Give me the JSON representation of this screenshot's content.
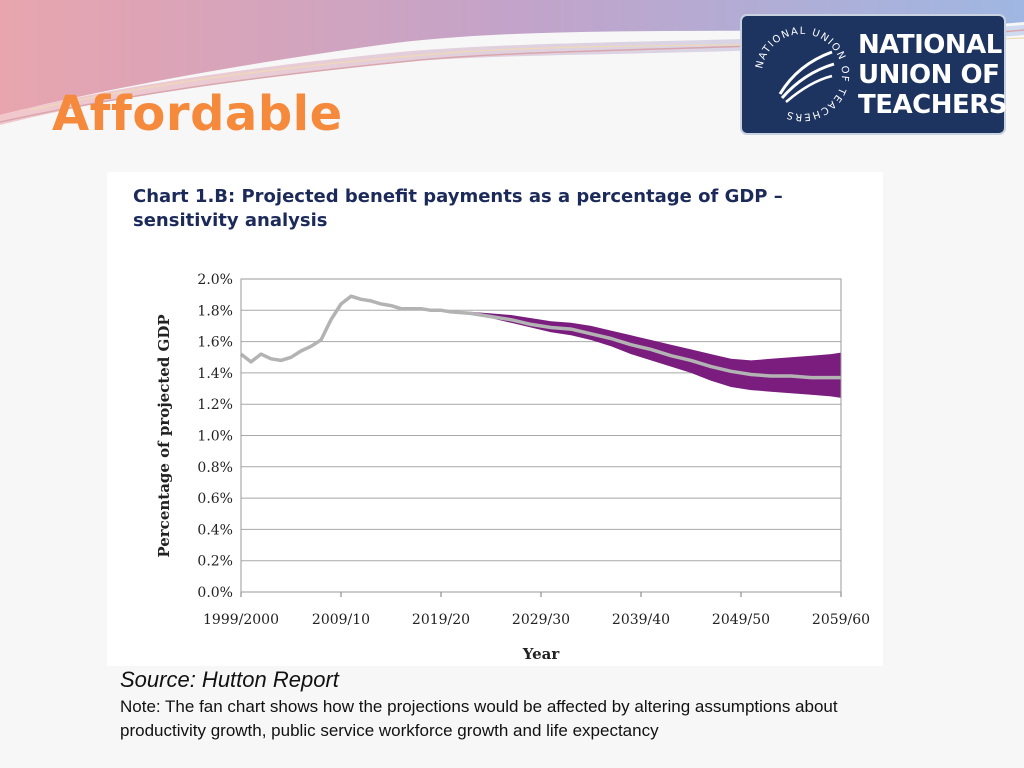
{
  "slide": {
    "title": "Affordable",
    "source": "Source: Hutton Report",
    "note": "Note: The fan chart shows how the projections would be affected by altering assumptions about productivity growth, public service workforce growth and life expectancy"
  },
  "logo": {
    "lines": [
      "NATIONAL",
      "UNION OF",
      "TEACHERS"
    ],
    "ring_text": "NATIONAL UNION OF TEACHERS",
    "icon": "quill-feathers-icon",
    "background": "#1d3461"
  },
  "colors": {
    "title": "#f58a3c",
    "central_line": "#b3b3b3",
    "fan_band": "#7a1d7e",
    "chart_title": "#1c2a5a"
  },
  "chart_data": {
    "type": "line",
    "title": "Chart 1.B: Projected benefit payments as a percentage of GDP – sensitivity analysis",
    "xlabel": "Year",
    "ylabel": "Percentage of projected GDP",
    "x_ticks": [
      "1999/2000",
      "2009/10",
      "2019/20",
      "2029/30",
      "2039/40",
      "2049/50",
      "2059/60"
    ],
    "y_ticks": [
      "0.0%",
      "0.2%",
      "0.4%",
      "0.6%",
      "0.8%",
      "1.0%",
      "1.2%",
      "1.4%",
      "1.6%",
      "1.8%",
      "2.0%"
    ],
    "ylim": [
      0,
      2.0
    ],
    "grid": true,
    "legend": "none",
    "series": [
      {
        "role": "central",
        "x": [
          1999,
          2000,
          2001,
          2002,
          2003,
          2004,
          2005,
          2006,
          2007,
          2008,
          2009,
          2010,
          2011,
          2012,
          2013,
          2014,
          2015,
          2016,
          2017,
          2018,
          2019,
          2020,
          2022,
          2024,
          2026,
          2028,
          2030,
          2032,
          2034,
          2036,
          2038,
          2040,
          2042,
          2044,
          2046,
          2048,
          2050,
          2052,
          2054,
          2056,
          2058,
          2059
        ],
        "values": [
          1.52,
          1.47,
          1.52,
          1.49,
          1.48,
          1.5,
          1.54,
          1.57,
          1.61,
          1.74,
          1.84,
          1.89,
          1.87,
          1.86,
          1.84,
          1.83,
          1.81,
          1.81,
          1.81,
          1.8,
          1.8,
          1.79,
          1.78,
          1.76,
          1.74,
          1.71,
          1.69,
          1.68,
          1.65,
          1.62,
          1.58,
          1.55,
          1.51,
          1.48,
          1.44,
          1.41,
          1.39,
          1.38,
          1.38,
          1.37,
          1.37,
          1.37
        ]
      },
      {
        "role": "upper",
        "x": [
          2019,
          2022,
          2024,
          2026,
          2028,
          2030,
          2032,
          2034,
          2036,
          2038,
          2040,
          2042,
          2044,
          2046,
          2048,
          2050,
          2052,
          2054,
          2056,
          2058,
          2059
        ],
        "values": [
          1.8,
          1.79,
          1.78,
          1.77,
          1.75,
          1.73,
          1.72,
          1.7,
          1.67,
          1.64,
          1.61,
          1.58,
          1.55,
          1.52,
          1.49,
          1.48,
          1.49,
          1.5,
          1.51,
          1.52,
          1.53
        ]
      },
      {
        "role": "lower",
        "x": [
          2019,
          2022,
          2024,
          2026,
          2028,
          2030,
          2032,
          2034,
          2036,
          2038,
          2040,
          2042,
          2044,
          2046,
          2048,
          2050,
          2052,
          2054,
          2056,
          2058,
          2059
        ],
        "values": [
          1.8,
          1.77,
          1.75,
          1.72,
          1.69,
          1.66,
          1.64,
          1.61,
          1.57,
          1.52,
          1.48,
          1.44,
          1.4,
          1.35,
          1.31,
          1.29,
          1.28,
          1.27,
          1.26,
          1.25,
          1.24
        ]
      }
    ]
  }
}
